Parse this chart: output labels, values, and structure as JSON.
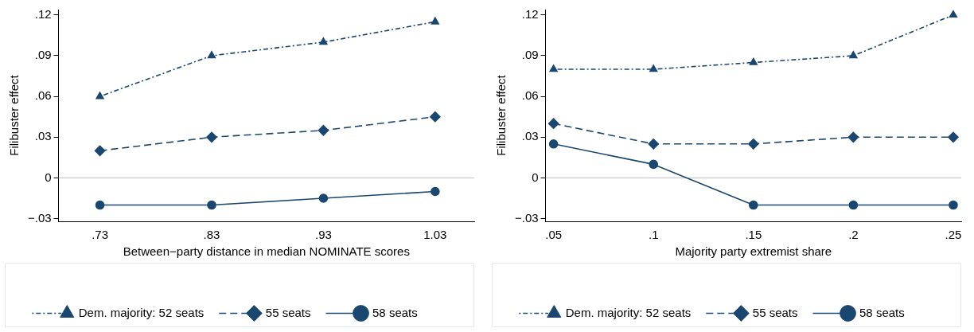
{
  "chart_data": [
    {
      "type": "line",
      "xlabel": "Between−party distance in median NOMINATE scores",
      "ylabel": "Filibuster effect",
      "x": [
        0.73,
        0.83,
        0.93,
        1.03
      ],
      "series": [
        {
          "name": "Dem. majority: 52 seats",
          "color": "#1a476f",
          "values": [
            0.06,
            0.09,
            0.1,
            0.115
          ],
          "marker": "triangle",
          "line_style": "dotted"
        },
        {
          "name": "55 seats",
          "color": "#1a476f",
          "values": [
            0.02,
            0.03,
            0.035,
            0.045
          ],
          "marker": "diamond",
          "line_style": "dashed"
        },
        {
          "name": "58 seats",
          "color": "#1a476f",
          "values": [
            -0.02,
            -0.02,
            -0.015,
            -0.01
          ],
          "marker": "circle",
          "line_style": "solid"
        }
      ],
      "xlim": [
        0.693,
        1.065
      ],
      "xticks": [
        {
          "value": 0.73,
          "label": ".73"
        },
        {
          "value": 0.83,
          "label": ".83"
        },
        {
          "value": 0.93,
          "label": ".93"
        },
        {
          "value": 1.03,
          "label": "1.03"
        }
      ],
      "ylim": [
        -0.032,
        0.124
      ],
      "yticks": [
        {
          "value": -0.03,
          "label": "−.03"
        },
        0,
        {
          "value": 0.03,
          "label": ".03"
        },
        {
          "value": 0.06,
          "label": ".06"
        },
        {
          "value": 0.09,
          "label": ".09"
        },
        {
          "value": 0.12,
          "label": ".12"
        }
      ],
      "ref_lines": [
        {
          "axis": "y",
          "value": 0,
          "color": "#bfbfbf"
        }
      ],
      "grid": false,
      "legend": "bottom"
    },
    {
      "type": "line",
      "xlabel": "Majority party extremist share",
      "ylabel": "Filibuster effect",
      "x": [
        0.05,
        0.1,
        0.15,
        0.2,
        0.25
      ],
      "series": [
        {
          "name": "Dem. majority: 52 seats",
          "color": "#1a476f",
          "values": [
            0.08,
            0.08,
            0.085,
            0.09,
            0.12
          ],
          "marker": "triangle",
          "line_style": "dotted"
        },
        {
          "name": "55 seats",
          "color": "#1a476f",
          "values": [
            0.04,
            0.025,
            0.025,
            0.03,
            0.03
          ],
          "marker": "diamond",
          "line_style": "dashed"
        },
        {
          "name": "58 seats",
          "color": "#1a476f",
          "values": [
            0.025,
            0.01,
            -0.02,
            -0.02,
            -0.02
          ],
          "marker": "circle",
          "line_style": "solid"
        }
      ],
      "xlim": [
        0.046,
        0.254
      ],
      "xticks": [
        {
          "value": 0.05,
          "label": ".05"
        },
        {
          "value": 0.1,
          "label": ".1"
        },
        {
          "value": 0.15,
          "label": ".15"
        },
        {
          "value": 0.2,
          "label": ".2"
        },
        {
          "value": 0.25,
          "label": ".25"
        }
      ],
      "ylim": [
        -0.032,
        0.124
      ],
      "yticks": [
        {
          "value": -0.03,
          "label": "−.03"
        },
        0,
        {
          "value": 0.03,
          "label": ".03"
        },
        {
          "value": 0.06,
          "label": ".06"
        },
        {
          "value": 0.09,
          "label": ".09"
        },
        {
          "value": 0.12,
          "label": ".12"
        }
      ],
      "ref_lines": [
        {
          "axis": "y",
          "value": 0,
          "color": "#bfbfbf"
        }
      ],
      "grid": false,
      "legend": "bottom"
    }
  ]
}
